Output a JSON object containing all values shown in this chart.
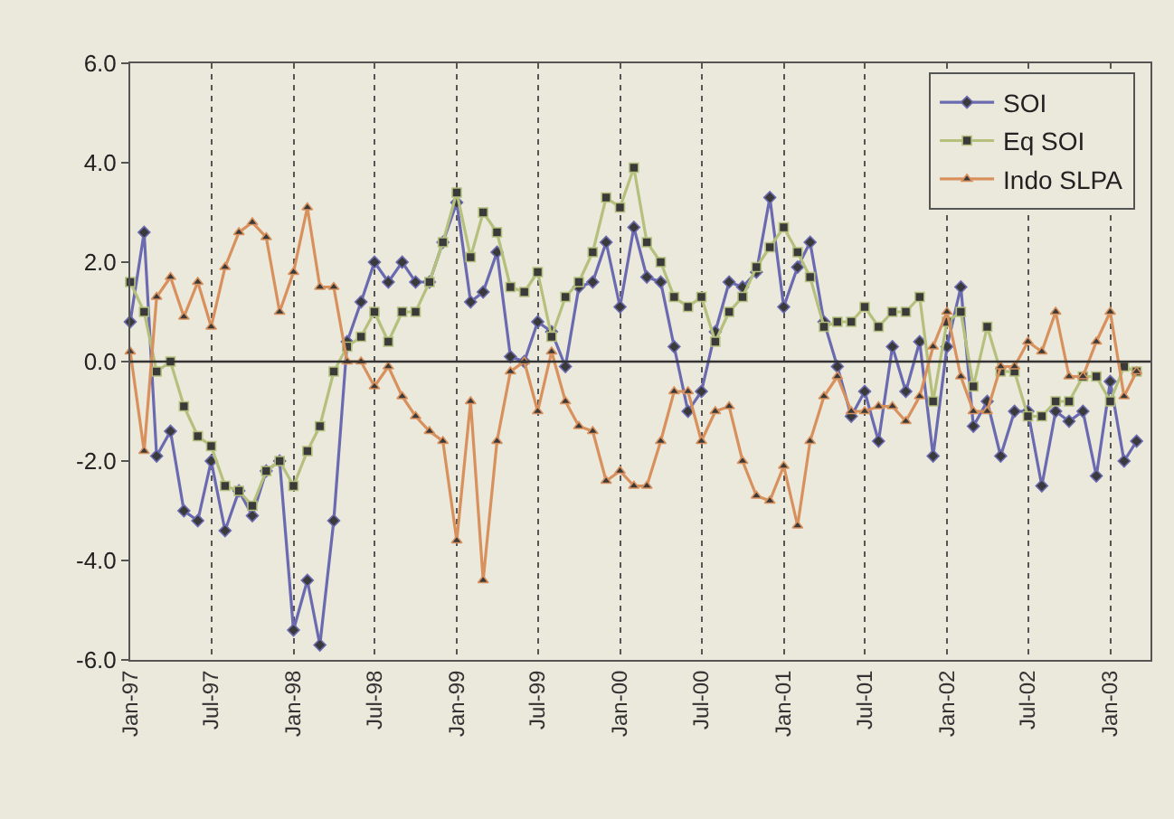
{
  "chart_data": {
    "type": "line",
    "x": [
      "1997-01",
      "1997-02",
      "1997-03",
      "1997-04",
      "1997-05",
      "1997-06",
      "1997-07",
      "1997-08",
      "1997-09",
      "1997-10",
      "1997-11",
      "1997-12",
      "1998-01",
      "1998-02",
      "1998-03",
      "1998-04",
      "1998-05",
      "1998-06",
      "1998-07",
      "1998-08",
      "1998-09",
      "1998-10",
      "1998-11",
      "1998-12",
      "1999-01",
      "1999-02",
      "1999-03",
      "1999-04",
      "1999-05",
      "1999-06",
      "1999-07",
      "1999-08",
      "1999-09",
      "1999-10",
      "1999-11",
      "1999-12",
      "2000-01",
      "2000-02",
      "2000-03",
      "2000-04",
      "2000-05",
      "2000-06",
      "2000-07",
      "2000-08",
      "2000-09",
      "2000-10",
      "2000-11",
      "2000-12",
      "2001-01",
      "2001-02",
      "2001-03",
      "2001-04",
      "2001-05",
      "2001-06",
      "2001-07",
      "2001-08",
      "2001-09",
      "2001-10",
      "2001-11",
      "2001-12",
      "2002-01",
      "2002-02",
      "2002-03",
      "2002-04",
      "2002-05",
      "2002-06",
      "2002-07",
      "2002-08",
      "2002-09",
      "2002-10",
      "2002-11",
      "2002-12",
      "2003-01",
      "2003-02",
      "2003-03"
    ],
    "series": [
      {
        "name": "SOI",
        "color": "#6a6ab0",
        "marker": "diamond",
        "values": [
          0.8,
          2.6,
          -1.9,
          -1.4,
          -3.0,
          -3.2,
          -2.0,
          -3.4,
          -2.6,
          -3.1,
          -2.2,
          -2.0,
          -5.4,
          -4.4,
          -5.7,
          -3.2,
          0.4,
          1.2,
          2.0,
          1.6,
          2.0,
          1.6,
          1.6,
          2.4,
          3.2,
          1.2,
          1.4,
          2.2,
          0.1,
          0.0,
          0.8,
          0.6,
          -0.1,
          1.5,
          1.6,
          2.4,
          1.1,
          2.7,
          1.7,
          1.6,
          0.3,
          -1.0,
          -0.6,
          0.6,
          1.6,
          1.5,
          1.8,
          3.3,
          1.1,
          1.9,
          2.4,
          0.8,
          -0.1,
          -1.1,
          -0.6,
          -1.6,
          0.3,
          -0.6,
          0.4,
          -1.9,
          0.3,
          1.5,
          -1.3,
          -0.8,
          -1.9,
          -1.0,
          -1.0,
          -2.5,
          -1.0,
          -1.2,
          -1.0,
          -2.3,
          -0.4,
          -2.0,
          -1.6
        ]
      },
      {
        "name": "Eq SOI",
        "color": "#b4c07c",
        "marker": "square",
        "values": [
          1.6,
          1.0,
          -0.2,
          0.0,
          -0.9,
          -1.5,
          -1.7,
          -2.5,
          -2.6,
          -2.9,
          -2.2,
          -2.0,
          -2.5,
          -1.8,
          -1.3,
          -0.2,
          0.3,
          0.5,
          1.0,
          0.4,
          1.0,
          1.0,
          1.6,
          2.4,
          3.4,
          2.1,
          3.0,
          2.6,
          1.5,
          1.4,
          1.8,
          0.5,
          1.3,
          1.6,
          2.2,
          3.3,
          3.1,
          3.9,
          2.4,
          2.0,
          1.3,
          1.1,
          1.3,
          0.4,
          1.0,
          1.3,
          1.9,
          2.3,
          2.7,
          2.2,
          1.7,
          0.7,
          0.8,
          0.8,
          1.1,
          0.7,
          1.0,
          1.0,
          1.3,
          -0.8,
          0.8,
          1.0,
          -0.5,
          0.7,
          -0.2,
          -0.2,
          -1.1,
          -1.1,
          -0.8,
          -0.8,
          -0.3,
          -0.3,
          -0.8,
          -0.1,
          -0.2
        ]
      },
      {
        "name": "Indo SLPA",
        "color": "#d8905c",
        "marker": "triangle",
        "values": [
          0.2,
          -1.8,
          1.3,
          1.7,
          0.9,
          1.6,
          0.7,
          1.9,
          2.6,
          2.8,
          2.5,
          1.0,
          1.8,
          3.1,
          1.5,
          1.5,
          0.0,
          0.0,
          -0.5,
          -0.1,
          -0.7,
          -1.1,
          -1.4,
          -1.6,
          -3.6,
          -0.8,
          -4.4,
          -1.6,
          -0.2,
          0.0,
          -1.0,
          0.2,
          -0.8,
          -1.3,
          -1.4,
          -2.4,
          -2.2,
          -2.5,
          -2.5,
          -1.6,
          -0.6,
          -0.6,
          -1.6,
          -1.0,
          -0.9,
          -2.0,
          -2.7,
          -2.8,
          -2.1,
          -3.3,
          -1.6,
          -0.7,
          -0.3,
          -1.0,
          -1.0,
          -0.9,
          -0.9,
          -1.2,
          -0.7,
          0.3,
          1.0,
          -0.3,
          -1.0,
          -1.0,
          -0.1,
          -0.1,
          0.4,
          0.2,
          1.0,
          -0.3,
          -0.3,
          0.4,
          1.0,
          -0.7,
          -0.2
        ]
      }
    ],
    "xlim": [
      "1997-01",
      "2003-04"
    ],
    "xticks": [
      {
        "value": "1997-01",
        "label": "Jan-97"
      },
      {
        "value": "1997-07",
        "label": "Jul-97"
      },
      {
        "value": "1998-01",
        "label": "Jan-98"
      },
      {
        "value": "1998-07",
        "label": "Jul-98"
      },
      {
        "value": "1999-01",
        "label": "Jan-99"
      },
      {
        "value": "1999-07",
        "label": "Jul-99"
      },
      {
        "value": "2000-01",
        "label": "Jan-00"
      },
      {
        "value": "2000-07",
        "label": "Jul-00"
      },
      {
        "value": "2001-01",
        "label": "Jan-01"
      },
      {
        "value": "2001-07",
        "label": "Jul-01"
      },
      {
        "value": "2002-01",
        "label": "Jan-02"
      },
      {
        "value": "2002-07",
        "label": "Jul-02"
      },
      {
        "value": "2003-01",
        "label": "Jan-03"
      }
    ],
    "ylim": [
      -6.0,
      6.0
    ],
    "yticks": [
      {
        "value": -6,
        "label": "-6.0"
      },
      {
        "value": -4,
        "label": "-4.0"
      },
      {
        "value": -2,
        "label": "-2.0"
      },
      {
        "value": 0,
        "label": "0.0"
      },
      {
        "value": 2,
        "label": "2.0"
      },
      {
        "value": 4,
        "label": "4.0"
      },
      {
        "value": 6,
        "label": "6.0"
      }
    ],
    "ref_lines": [
      {
        "axis": "y",
        "value": 0,
        "color": "#333333",
        "line_style": "solid"
      }
    ],
    "grid": "x",
    "legend": "top right",
    "line_style": "solid"
  }
}
